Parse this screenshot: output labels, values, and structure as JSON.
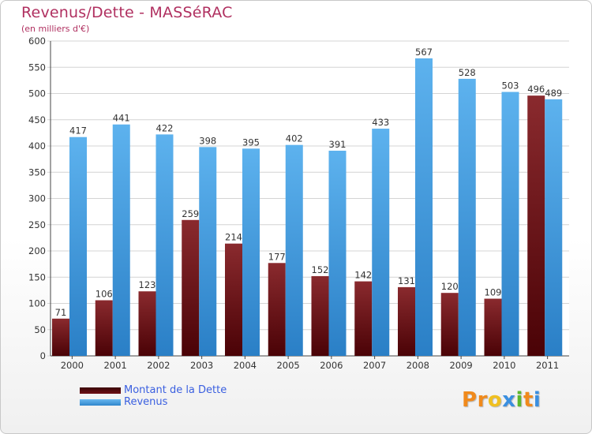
{
  "title": "Revenus/Dette - MASSéRAC",
  "subtitle": "(en milliers d'€)",
  "logo": "Proxiti",
  "colors": {
    "dette": "#6e0f14",
    "revenus": "#4ea4e4",
    "title": "#b03060",
    "legend_text": "#3a5fe0"
  },
  "legend": {
    "items": [
      {
        "label": "Montant de la Dette",
        "color": "#6e0f14"
      },
      {
        "label": "Revenus",
        "color": "#4ea4e4"
      }
    ]
  },
  "chart_data": {
    "type": "bar",
    "title": "Revenus/Dette - MASSéRAC",
    "ylabel": "(en milliers d'€)",
    "xlabel": "",
    "ylim": [
      0,
      600
    ],
    "yticks": [
      0,
      50,
      100,
      150,
      200,
      250,
      300,
      350,
      400,
      450,
      500,
      550,
      600
    ],
    "grid": true,
    "legend": "bottom-left",
    "categories": [
      "2000",
      "2001",
      "2002",
      "2003",
      "2004",
      "2005",
      "2006",
      "2007",
      "2008",
      "2009",
      "2010",
      "2011"
    ],
    "series": [
      {
        "name": "Montant de la Dette",
        "values": [
          71,
          106,
          123,
          259,
          214,
          177,
          152,
          142,
          131,
          120,
          109,
          496
        ]
      },
      {
        "name": "Revenus",
        "values": [
          417,
          441,
          422,
          398,
          395,
          402,
          391,
          433,
          567,
          528,
          503,
          489
        ]
      }
    ]
  }
}
